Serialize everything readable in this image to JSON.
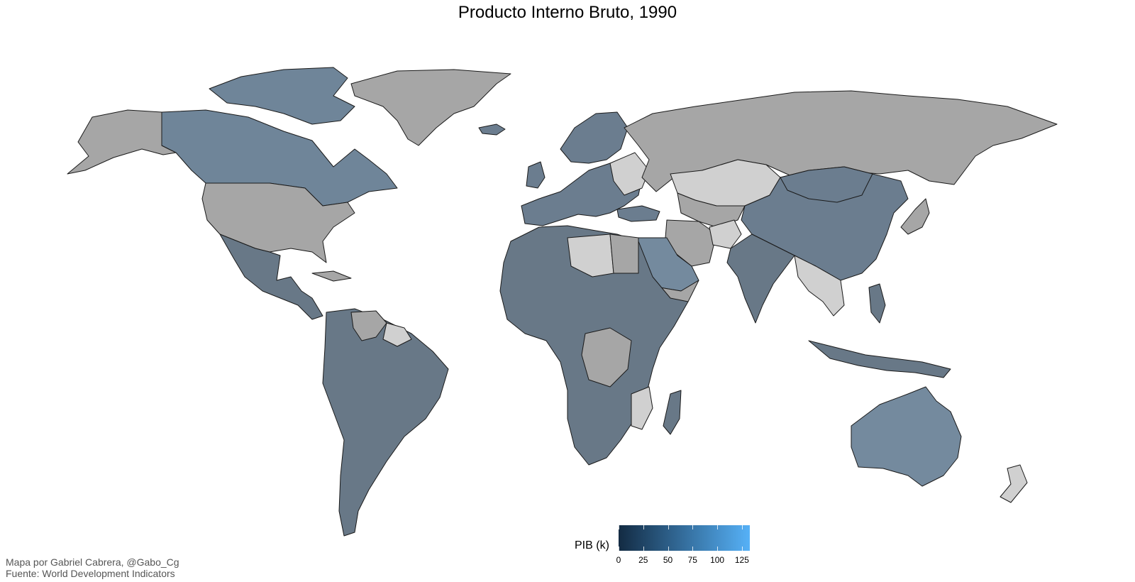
{
  "title": "Producto Interno Bruto,  1990",
  "legend": {
    "title": "PIB (k)",
    "scale_min": 0,
    "scale_max": 133,
    "low_color": "#132b43",
    "high_color": "#56b1f7",
    "ticks": [
      "0",
      "25",
      "50",
      "75",
      "100",
      "125"
    ]
  },
  "colors": {
    "no_data": "#a6a6a6",
    "light_no_data": "#d0d0d0",
    "low_value": "#687887",
    "mid_value": "#6b7d8f",
    "higher_value": "#748a9e"
  },
  "caption": {
    "line1": "Mapa por Gabriel Cabrera, @Gabo_Cg",
    "line2": "Fuente: World Development Indicators"
  }
}
